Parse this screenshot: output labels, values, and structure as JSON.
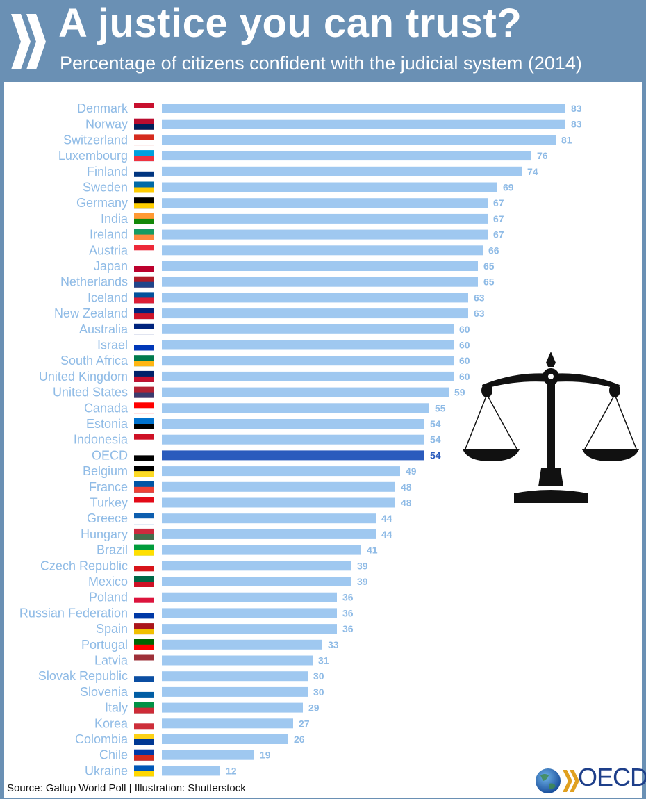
{
  "header": {
    "title": "A justice you can trust?",
    "subtitle": "Percentage of citizens confident with the judicial system (2014)"
  },
  "footer": {
    "source": "Source: Gallup World Poll | Illustration: Shutterstock",
    "logo_text": "OECD"
  },
  "colors": {
    "bar": "#9fc8f0",
    "bar_highlight": "#2a5bbd",
    "label": "#8fbbe6",
    "header_bg": "#6a90b4"
  },
  "chart_data": {
    "type": "bar",
    "orientation": "horizontal",
    "title": "A justice you can trust?",
    "subtitle": "Percentage of citizens confident with the judicial system (2014)",
    "unit": "%",
    "highlight": "OECD",
    "categories": [
      "Denmark",
      "Norway",
      "Switzerland",
      "Luxembourg",
      "Finland",
      "Sweden",
      "Germany",
      "India",
      "Ireland",
      "Austria",
      "Japan",
      "Netherlands",
      "Iceland",
      "New Zealand",
      "Australia",
      "Israel",
      "South Africa",
      "United Kingdom",
      "United States",
      "Canada",
      "Estonia",
      "Indonesia",
      "OECD",
      "Belgium",
      "France",
      "Turkey",
      "Greece",
      "Hungary",
      "Brazil",
      "Czech Republic",
      "Mexico",
      "Poland",
      "Russian Federation",
      "Spain",
      "Portugal",
      "Latvia",
      "Slovak Republic",
      "Slovenia",
      "Italy",
      "Korea",
      "Colombia",
      "Chile",
      "Ukraine"
    ],
    "values": [
      83,
      83,
      81,
      76,
      74,
      69,
      67,
      67,
      67,
      66,
      65,
      65,
      63,
      63,
      60,
      60,
      60,
      60,
      59,
      55,
      54,
      54,
      54,
      49,
      48,
      48,
      44,
      44,
      41,
      39,
      39,
      36,
      36,
      36,
      33,
      31,
      30,
      30,
      29,
      27,
      26,
      19,
      12
    ],
    "xlim": [
      0,
      100
    ]
  }
}
